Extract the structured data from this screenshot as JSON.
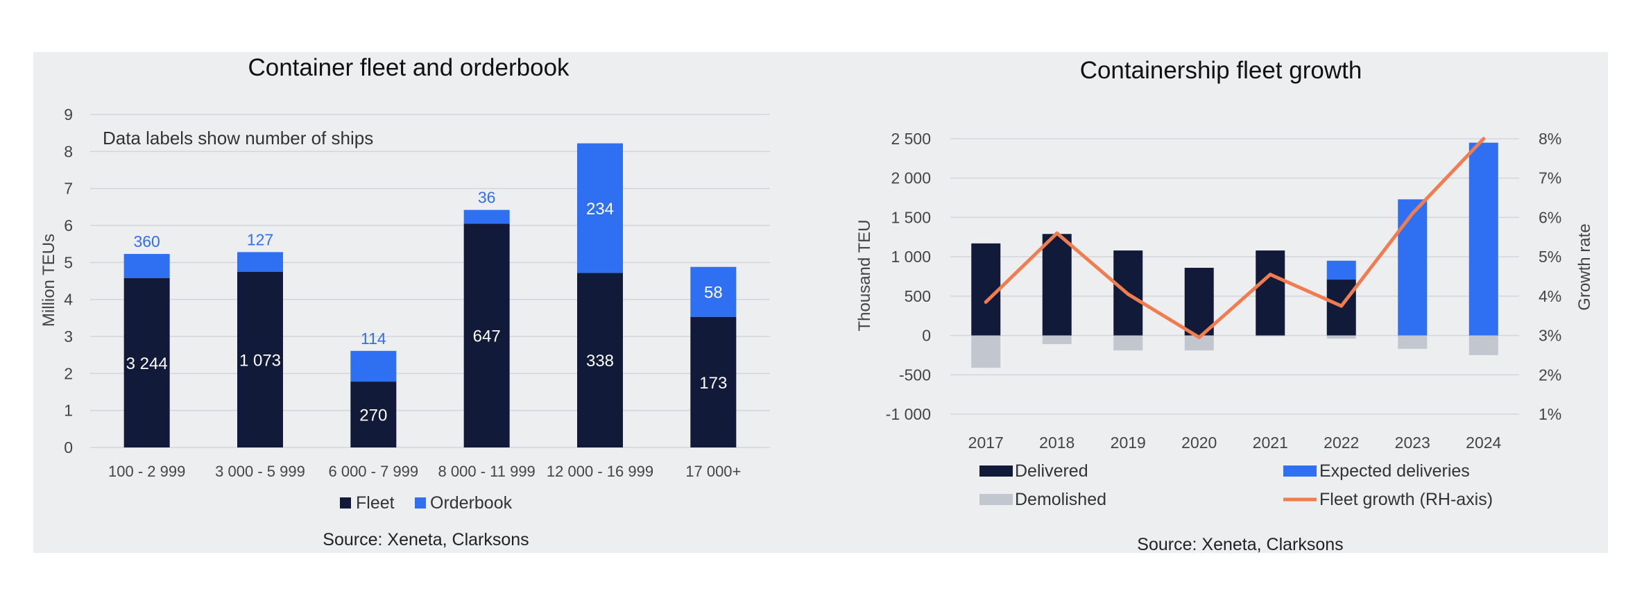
{
  "chart_data": [
    {
      "type": "bar",
      "stacked": true,
      "title": "Container fleet and orderbook",
      "annotation": "Data labels show number of ships",
      "ylabel": "Million TEUs",
      "ylim": [
        0,
        9
      ],
      "yticks": [
        0,
        1,
        2,
        3,
        4,
        5,
        6,
        7,
        8,
        9
      ],
      "categories": [
        "100 - 2 999",
        "3 000 - 5 999",
        "6 000 - 7 999",
        "8 000 - 11 999",
        "12 000 - 16 999",
        "17 000+"
      ],
      "series": [
        {
          "name": "Fleet",
          "color": "#111a38",
          "values": [
            4.58,
            4.75,
            1.78,
            6.05,
            4.72,
            3.53
          ],
          "labels": [
            "3 244",
            "1 073",
            "270",
            "647",
            "338",
            "173"
          ]
        },
        {
          "name": "Orderbook",
          "color": "#2f6ff2",
          "values": [
            0.65,
            0.53,
            0.83,
            0.37,
            3.5,
            1.35
          ],
          "labels": [
            "360",
            "127",
            "114",
            "36",
            "234",
            "58"
          ]
        }
      ],
      "legend": "bottom",
      "source": "Source: Xeneta, Clarksons"
    },
    {
      "type": "bar+line",
      "title": "Containership fleet growth",
      "ylabel": "Thousand TEU",
      "y2label": "Growth rate",
      "ylim": [
        -1000,
        2500
      ],
      "yticks": [
        -1000,
        -500,
        0,
        500,
        1000,
        1500,
        2000,
        2500
      ],
      "ytick_labels": [
        "-1 000",
        "-500",
        "0",
        "500",
        "1 000",
        "1 500",
        "2 000",
        "2 500"
      ],
      "y2lim": [
        1,
        8
      ],
      "y2ticks": [
        1,
        2,
        3,
        4,
        5,
        6,
        7,
        8
      ],
      "y2tick_labels": [
        "1%",
        "2%",
        "3%",
        "4%",
        "5%",
        "6%",
        "7%",
        "8%"
      ],
      "categories": [
        "2017",
        "2018",
        "2019",
        "2020",
        "2021",
        "2022",
        "2023",
        "2024"
      ],
      "series": [
        {
          "name": "Delivered",
          "type": "bar",
          "color": "#111a38",
          "values": [
            1170,
            1290,
            1080,
            860,
            1080,
            710,
            0,
            0
          ]
        },
        {
          "name": "Expected deliveries",
          "type": "bar",
          "color": "#2f6ff2",
          "values": [
            0,
            0,
            0,
            0,
            0,
            240,
            1730,
            2450
          ]
        },
        {
          "name": "Demolished",
          "type": "bar",
          "color": "#c2c6cf",
          "values": [
            -410,
            -110,
            -190,
            -190,
            -10,
            -40,
            -170,
            -250
          ]
        },
        {
          "name": "Fleet growth (RH-axis)",
          "type": "line",
          "axis": "right",
          "color": "#ef7d4f",
          "values": [
            3.85,
            5.6,
            4.05,
            2.95,
            4.55,
            3.75,
            6.1,
            8.0
          ]
        }
      ],
      "legend": "bottom",
      "source": "Source: Xeneta, Clarksons"
    }
  ]
}
